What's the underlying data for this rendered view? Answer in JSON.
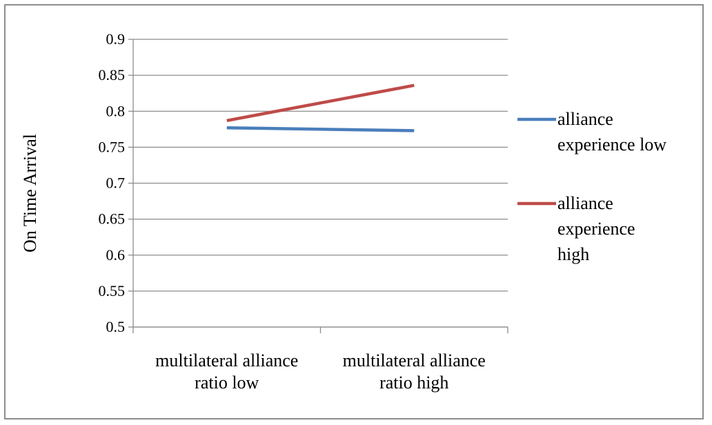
{
  "chart_data": {
    "type": "line",
    "categories": [
      [
        "multilateral alliance",
        "ratio low"
      ],
      [
        "multilateral alliance",
        "ratio high"
      ]
    ],
    "series": [
      {
        "name": [
          "alliance",
          "experience low"
        ],
        "values": [
          0.777,
          0.773
        ],
        "color": "#4a7ebb"
      },
      {
        "name": [
          "alliance",
          "experience",
          "high"
        ],
        "values": [
          0.787,
          0.836
        ],
        "color": "#be4b48"
      }
    ],
    "ylabel": "On Time Arrival",
    "ylim": [
      0.5,
      0.9
    ],
    "yticks": [
      "0.5",
      "0.55",
      "0.6",
      "0.65",
      "0.7",
      "0.75",
      "0.8",
      "0.85",
      "0.9"
    ],
    "grid": true,
    "legend_position": "right",
    "axis_color": "#8c8c8c"
  }
}
